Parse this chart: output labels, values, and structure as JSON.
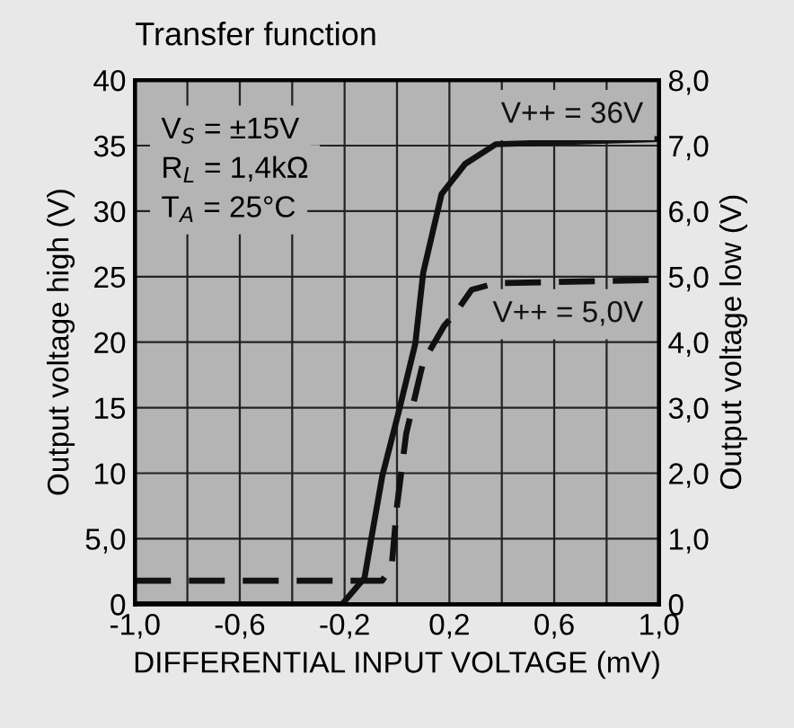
{
  "chart_data": {
    "type": "line",
    "title": "Transfer function",
    "xlabel": "DIFFERENTIAL INPUT VOLTAGE (mV)",
    "ylabel": "Output voltage high (V)",
    "y2label": "Output voltage low (V)",
    "xlim": [
      -1.0,
      1.0
    ],
    "xticks": [
      {
        "value": -1.0,
        "label": "-1,0"
      },
      {
        "value": -0.8,
        "label": null
      },
      {
        "value": -0.6,
        "label": "-0,6"
      },
      {
        "value": -0.4,
        "label": null
      },
      {
        "value": -0.2,
        "label": "-0,2"
      },
      {
        "value": 0,
        "label": null
      },
      {
        "value": 0.2,
        "label": "0,2"
      },
      {
        "value": 0.4,
        "label": null
      },
      {
        "value": 0.6,
        "label": "0,6"
      },
      {
        "value": 0.8,
        "label": null
      },
      {
        "value": 1.0,
        "label": "1,0"
      }
    ],
    "ylim": [
      0,
      40
    ],
    "yticks": [
      0,
      {
        "value": 5,
        "label": "5,0"
      },
      10,
      15,
      20,
      25,
      30,
      35,
      40
    ],
    "y2lim": [
      0,
      8
    ],
    "y2ticks": [
      0,
      {
        "value": 1,
        "label": "1,0"
      },
      {
        "value": 2,
        "label": "2,0"
      },
      {
        "value": 3,
        "label": "3,0"
      },
      {
        "value": 4,
        "label": "4,0"
      },
      {
        "value": 5,
        "label": "5,0"
      },
      {
        "value": 6,
        "label": "6,0"
      },
      {
        "value": 7,
        "label": "7,0"
      },
      {
        "value": 8,
        "label": "8,0"
      }
    ],
    "grid": true,
    "legend": false,
    "marker": "none",
    "series": [
      {
        "name": "V++ = 36V",
        "color": "#111111",
        "line_style": "solid",
        "x": [
          -1.0,
          -0.21,
          -0.124,
          -0.1,
          -0.056,
          0.008,
          0.07,
          0.1,
          0.17,
          0.26,
          0.377,
          1.0
        ],
        "values": [
          0,
          0,
          2.0,
          4.8,
          9.8,
          14.8,
          19.9,
          25.3,
          31.3,
          33.6,
          35.1,
          35.5
        ]
      },
      {
        "name": "V++ = 5,0V",
        "color": "#111111",
        "line_style": "dashed",
        "axis": "y2",
        "x": [
          -1.0,
          -0.056,
          -0.02,
          0.0,
          0.035,
          0.1,
          0.18,
          0.22,
          0.285,
          0.377,
          1.0
        ],
        "values": [
          0.36,
          0.36,
          0.59,
          1.5,
          2.6,
          3.7,
          4.25,
          4.43,
          4.8,
          4.9,
          4.95
        ]
      }
    ],
    "annotations": [
      "V$_{S}$ = ±15V",
      "R$_{L}$ = 1,4kΩ",
      "T$_{A}$ = 25°C"
    ]
  }
}
